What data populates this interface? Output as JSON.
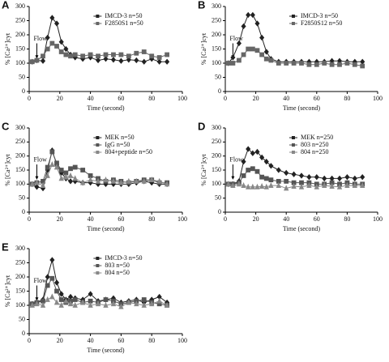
{
  "chart_data": [
    {
      "type": "line",
      "panel": "A",
      "ylabel": "% [Ca²⁺]cyt",
      "xlabel": "Time (second)",
      "xlim": [
        0,
        100
      ],
      "xticks": [
        0,
        20,
        40,
        60,
        80,
        100
      ],
      "ylim": [
        0,
        300
      ],
      "yticks": [
        0,
        50,
        100,
        150,
        200,
        250,
        300
      ],
      "annotations": [
        {
          "text": "Flow",
          "x": 5
        }
      ],
      "x": [
        2,
        5,
        9,
        12,
        15,
        18,
        21,
        24,
        27,
        30,
        35,
        40,
        45,
        50,
        55,
        60,
        65,
        70,
        75,
        80,
        85,
        90
      ],
      "series": [
        {
          "name": "IMCD-3 n=50",
          "color": "#222222",
          "marker": "diamond",
          "values": [
            105,
            110,
            108,
            190,
            260,
            240,
            175,
            150,
            130,
            120,
            115,
            120,
            110,
            115,
            112,
            108,
            112,
            110,
            105,
            115,
            105,
            105
          ]
        },
        {
          "name": "F2850S1 n=50",
          "color": "#666666",
          "marker": "square",
          "values": [
            105,
            110,
            125,
            150,
            170,
            160,
            140,
            130,
            125,
            130,
            125,
            130,
            125,
            130,
            130,
            130,
            125,
            135,
            140,
            125,
            120,
            130
          ]
        }
      ]
    },
    {
      "type": "line",
      "panel": "B",
      "ylabel": "% [Ca²⁺]cyt",
      "xlabel": "Time (second)",
      "xlim": [
        0,
        100
      ],
      "xticks": [
        0,
        20,
        40,
        60,
        80,
        100
      ],
      "ylim": [
        0,
        300
      ],
      "yticks": [
        0,
        50,
        100,
        150,
        200,
        250,
        300
      ],
      "annotations": [
        {
          "text": "Flow",
          "x": 5
        }
      ],
      "x": [
        2,
        5,
        9,
        12,
        15,
        18,
        21,
        24,
        27,
        30,
        35,
        40,
        45,
        50,
        55,
        60,
        65,
        70,
        75,
        80,
        85,
        90
      ],
      "series": [
        {
          "name": "IMCD-3 n=50",
          "color": "#222222",
          "marker": "diamond",
          "values": [
            100,
            120,
            170,
            230,
            270,
            270,
            240,
            190,
            140,
            115,
            105,
            105,
            105,
            105,
            105,
            105,
            105,
            108,
            108,
            105,
            105,
            105
          ]
        },
        {
          "name": "F2850S12 n=50",
          "color": "#666666",
          "marker": "square",
          "values": [
            100,
            100,
            110,
            130,
            150,
            150,
            145,
            130,
            115,
            110,
            100,
            100,
            100,
            100,
            95,
            95,
            100,
            95,
            95,
            100,
            95,
            90
          ]
        }
      ]
    },
    {
      "type": "line",
      "panel": "C",
      "ylabel": "% [Ca²⁺]cyt",
      "xlabel": "Time (second)",
      "xlim": [
        0,
        100
      ],
      "xticks": [
        0,
        20,
        40,
        60,
        80,
        100
      ],
      "ylim": [
        0,
        300
      ],
      "yticks": [
        0,
        50,
        100,
        150,
        200,
        250,
        300
      ],
      "annotations": [
        {
          "text": "Flow",
          "x": 5
        }
      ],
      "x": [
        2,
        5,
        9,
        12,
        15,
        18,
        21,
        24,
        27,
        30,
        35,
        40,
        45,
        50,
        55,
        60,
        65,
        70,
        75,
        80,
        85,
        90
      ],
      "series": [
        {
          "name": "MEK n=50",
          "color": "#222222",
          "marker": "diamond",
          "values": [
            100,
            90,
            85,
            150,
            220,
            170,
            140,
            120,
            110,
            110,
            105,
            105,
            100,
            100,
            100,
            100,
            100,
            105,
            110,
            105,
            100,
            100
          ]
        },
        {
          "name": "IgG n=50",
          "color": "#555555",
          "marker": "square",
          "values": [
            100,
            105,
            110,
            160,
            215,
            175,
            150,
            140,
            155,
            160,
            150,
            130,
            120,
            110,
            115,
            110,
            105,
            110,
            115,
            115,
            105,
            105
          ]
        },
        {
          "name": "804+peptide n=50",
          "color": "#888888",
          "marker": "triangle",
          "values": [
            100,
            105,
            95,
            130,
            170,
            160,
            120,
            125,
            130,
            120,
            105,
            115,
            110,
            115,
            110,
            105,
            110,
            110,
            110,
            115,
            110,
            100
          ]
        }
      ]
    },
    {
      "type": "line",
      "panel": "D",
      "ylabel": "% [Ca²⁺]cyt",
      "xlabel": "Time (second)",
      "xlim": [
        0,
        100
      ],
      "xticks": [
        0,
        20,
        40,
        60,
        80,
        100
      ],
      "ylim": [
        0,
        300
      ],
      "yticks": [
        0,
        50,
        100,
        150,
        200,
        250,
        300
      ],
      "annotations": [
        {
          "text": "Flow",
          "x": 5
        }
      ],
      "x": [
        2,
        5,
        9,
        12,
        15,
        18,
        21,
        24,
        27,
        30,
        35,
        40,
        45,
        50,
        55,
        60,
        65,
        70,
        75,
        80,
        85,
        90
      ],
      "series": [
        {
          "name": "MEK n=250",
          "color": "#222222",
          "marker": "diamond",
          "values": [
            100,
            100,
            110,
            180,
            225,
            210,
            215,
            195,
            180,
            165,
            150,
            140,
            135,
            130,
            125,
            125,
            120,
            120,
            120,
            125,
            120,
            125
          ]
        },
        {
          "name": "803 n=250",
          "color": "#555555",
          "marker": "square",
          "values": [
            100,
            100,
            105,
            130,
            150,
            155,
            145,
            125,
            120,
            115,
            110,
            110,
            105,
            105,
            105,
            100,
            100,
            105,
            100,
            105,
            100,
            100
          ]
        },
        {
          "name": "804 n=250",
          "color": "#888888",
          "marker": "triangle",
          "values": [
            100,
            95,
            100,
            95,
            90,
            90,
            90,
            92,
            90,
            95,
            95,
            85,
            92,
            90,
            95,
            90,
            95,
            92,
            90,
            95,
            95,
            95
          ]
        }
      ]
    },
    {
      "type": "line",
      "panel": "E",
      "ylabel": "% [Ca²⁺]cyt",
      "xlabel": "Time (second)",
      "xlim": [
        0,
        100
      ],
      "xticks": [
        0,
        20,
        40,
        60,
        80,
        100
      ],
      "ylim": [
        0,
        300
      ],
      "yticks": [
        0,
        50,
        100,
        150,
        200,
        250,
        300
      ],
      "annotations": [
        {
          "text": "Flow",
          "x": 5
        }
      ],
      "x": [
        2,
        5,
        9,
        12,
        15,
        18,
        21,
        24,
        27,
        30,
        35,
        40,
        45,
        50,
        55,
        60,
        65,
        70,
        75,
        80,
        85,
        90
      ],
      "series": [
        {
          "name": "IMCD-3 n=50",
          "color": "#222222",
          "marker": "diamond",
          "values": [
            105,
            110,
            120,
            200,
            260,
            180,
            140,
            120,
            130,
            125,
            120,
            140,
            115,
            120,
            125,
            110,
            115,
            120,
            110,
            120,
            130,
            110
          ]
        },
        {
          "name": "803 n=50",
          "color": "#555555",
          "marker": "square",
          "values": [
            105,
            110,
            115,
            170,
            195,
            150,
            120,
            110,
            115,
            120,
            110,
            115,
            110,
            120,
            115,
            105,
            110,
            115,
            120,
            110,
            105,
            100
          ]
        },
        {
          "name": "804 n=50",
          "color": "#888888",
          "marker": "triangle",
          "values": [
            100,
            105,
            100,
            120,
            130,
            110,
            100,
            115,
            105,
            100,
            110,
            100,
            105,
            100,
            105,
            95,
            110,
            105,
            100,
            105,
            115,
            100
          ]
        }
      ]
    }
  ]
}
